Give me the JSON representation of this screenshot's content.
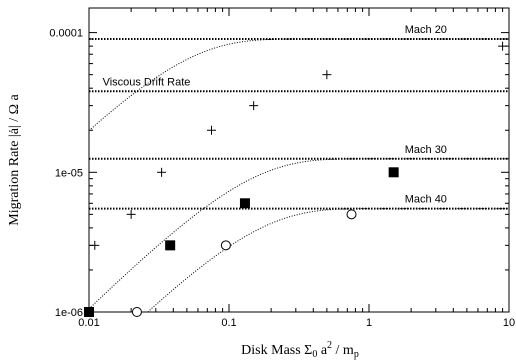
{
  "chart_data": {
    "type": "scatter",
    "x_scale": "log",
    "y_scale": "log",
    "xlim": [
      0.01,
      10
    ],
    "ylim": [
      1e-06,
      0.00015
    ],
    "xlabel": "Disk Mass  Σ0 a² / mp",
    "ylabel": "Migration Rate  |ȧ| / Ω a",
    "xlabel_parts": {
      "main": "Disk Mass  Σ",
      "sub0": "0",
      "mid": " a",
      "sup": "2",
      "end": " / m",
      "subp": "p"
    },
    "ylabel_parts": {
      "main": "Migration Rate  |ȧ| / Ω a"
    },
    "x_ticks": [
      {
        "value": 0.01,
        "label": "0.01"
      },
      {
        "value": 0.1,
        "label": "0.1"
      },
      {
        "value": 1,
        "label": "1"
      },
      {
        "value": 10,
        "label": "10"
      }
    ],
    "y_ticks": [
      {
        "value": 1e-06,
        "label": "1e-06"
      },
      {
        "value": 1e-05,
        "label": "1e-05"
      },
      {
        "value": 0.0001,
        "label": "0.0001"
      }
    ],
    "reference_lines": [
      {
        "name": "Mach 20",
        "y": 9e-05,
        "label_x": 1.8
      },
      {
        "name": "Viscous Drift Rate",
        "y": 3.8e-05,
        "label_x": 0.0125
      },
      {
        "name": "Mach 30",
        "y": 1.25e-05,
        "label_x": 1.8
      },
      {
        "name": "Mach 40",
        "y": 5.5e-06,
        "label_x": 1.8
      }
    ],
    "series": [
      {
        "name": "Mach 20",
        "marker": "plus",
        "points": [
          {
            "x": 0.011,
            "y": 3e-06
          },
          {
            "x": 0.02,
            "y": 5e-06
          },
          {
            "x": 0.033,
            "y": 1e-05
          },
          {
            "x": 0.075,
            "y": 2e-05
          },
          {
            "x": 0.15,
            "y": 3e-05
          },
          {
            "x": 0.5,
            "y": 5e-05
          },
          {
            "x": 9.0,
            "y": 8e-05
          }
        ],
        "fit": {
          "saturation": 9e-05,
          "slope": 0.00225
        }
      },
      {
        "name": "Mach 30",
        "marker": "filled-square",
        "points": [
          {
            "x": 0.01,
            "y": 1e-06
          },
          {
            "x": 0.038,
            "y": 3e-06
          },
          {
            "x": 0.13,
            "y": 6e-06
          },
          {
            "x": 1.5,
            "y": 1e-05
          }
        ],
        "fit": {
          "saturation": 1.25e-05,
          "slope": 0.00011
        }
      },
      {
        "name": "Mach 40",
        "marker": "open-circle",
        "points": [
          {
            "x": 0.022,
            "y": 1e-06
          },
          {
            "x": 0.095,
            "y": 3e-06
          },
          {
            "x": 0.75,
            "y": 5e-06
          }
        ],
        "fit": {
          "saturation": 5.5e-06,
          "slope": 4.2e-05
        }
      }
    ],
    "grid": false,
    "legend": "none"
  }
}
